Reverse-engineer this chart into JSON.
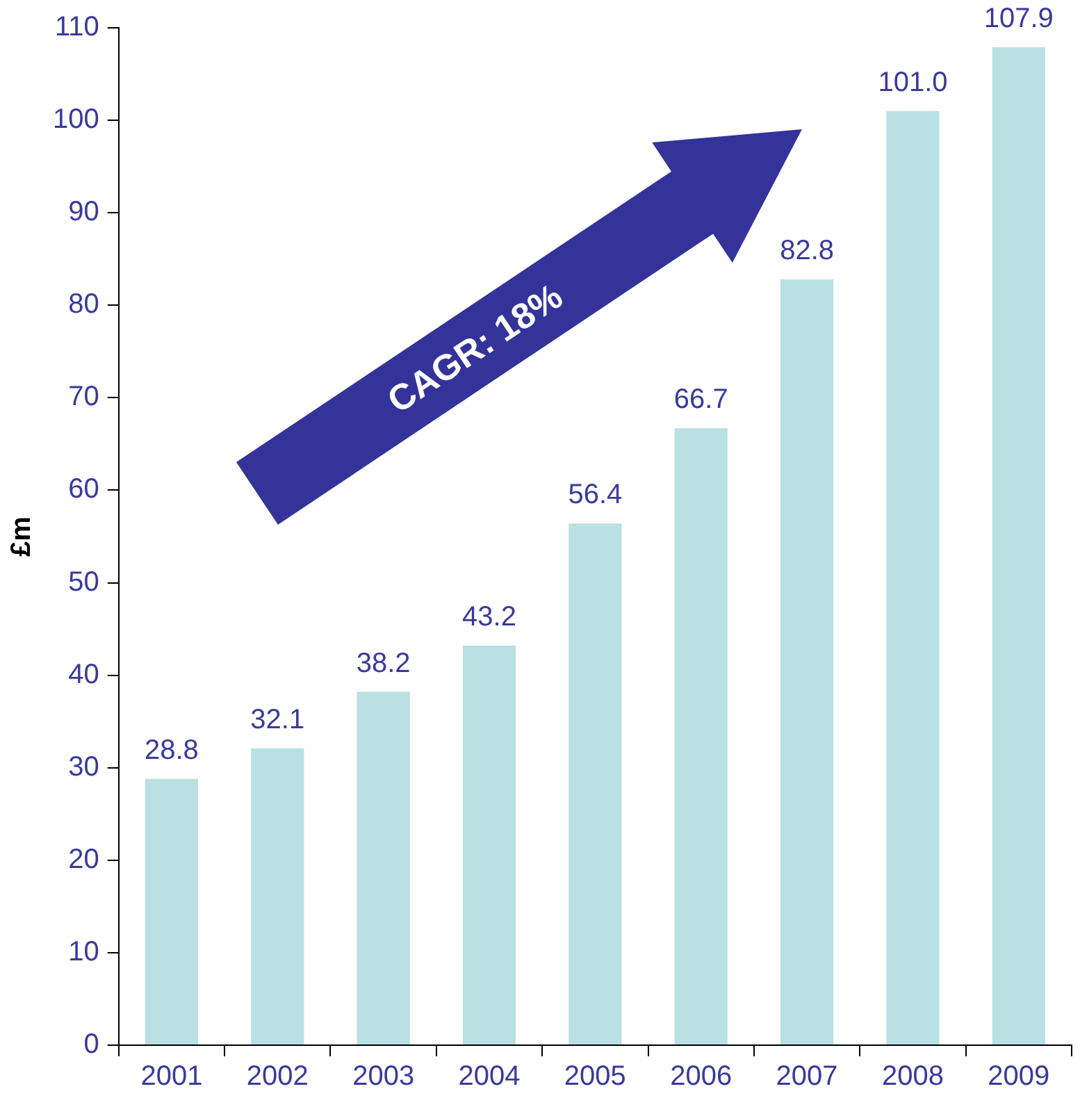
{
  "chart_data": {
    "type": "bar",
    "ylabel": "£m",
    "categories": [
      "2001",
      "2002",
      "2003",
      "2004",
      "2005",
      "2006",
      "2007",
      "2008",
      "2009"
    ],
    "values": [
      28.8,
      32.1,
      38.2,
      43.2,
      56.4,
      66.7,
      82.8,
      101.0,
      107.9
    ],
    "value_labels": [
      "28.8",
      "32.1",
      "38.2",
      "43.2",
      "56.4",
      "66.7",
      "82.8",
      "101.0",
      "107.9"
    ],
    "color": "#b9e0e2",
    "ylim": [
      0,
      110
    ],
    "yticks": [
      0,
      10,
      20,
      30,
      40,
      50,
      60,
      70,
      80,
      90,
      100,
      110
    ],
    "grid": false,
    "legend": false,
    "annotations": [
      "CAGR: 18%"
    ]
  }
}
